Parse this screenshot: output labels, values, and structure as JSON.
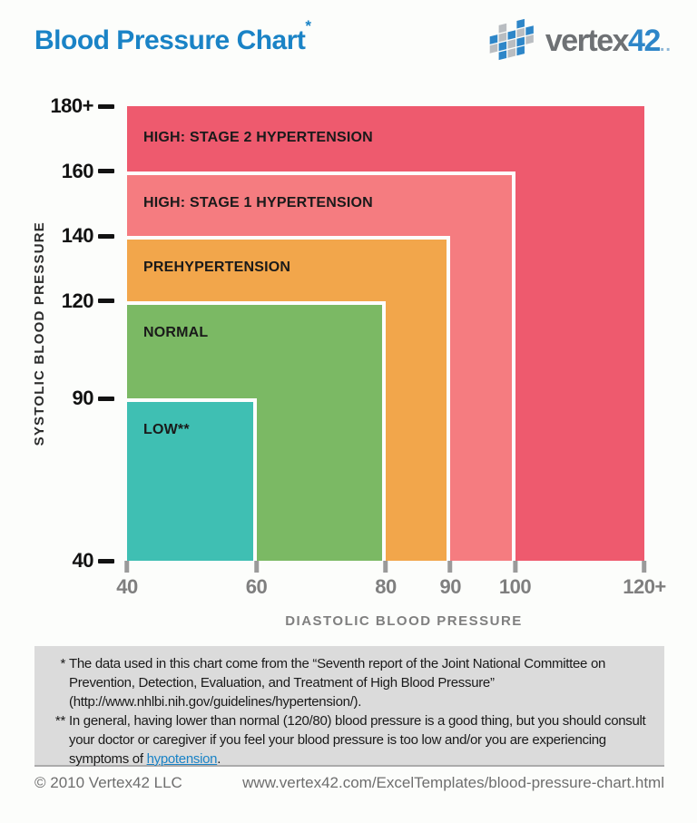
{
  "header": {
    "title": "Blood Pressure Chart",
    "asterisk": "*",
    "title_color": "#1A83C6"
  },
  "logo": {
    "name_gray": "vertex",
    "name_blue": "42",
    "dots": "..",
    "blue": "#2E86C8",
    "gray": "#B9BDC1"
  },
  "chart_data": {
    "type": "area",
    "title": "Blood Pressure Chart",
    "xlabel": "DIASTOLIC BLOOD PRESSURE",
    "ylabel": "SYSTOLIC BLOOD PRESSURE",
    "xlim": [
      40,
      120
    ],
    "ylim": [
      40,
      180
    ],
    "grid": false,
    "x_ticks": [
      {
        "label": "40",
        "value": 40
      },
      {
        "label": "60",
        "value": 60
      },
      {
        "label": "80",
        "value": 80
      },
      {
        "label": "90",
        "value": 90
      },
      {
        "label": "100",
        "value": 100
      },
      {
        "label": "120+",
        "value": 120
      }
    ],
    "y_ticks": [
      {
        "label": "40",
        "value": 40
      },
      {
        "label": "90",
        "value": 90
      },
      {
        "label": "120",
        "value": 120
      },
      {
        "label": "140",
        "value": 140
      },
      {
        "label": "160",
        "value": 160
      },
      {
        "label": "180+",
        "value": 180
      }
    ],
    "zones": [
      {
        "label": "HIGH: STAGE 2 HYPERTENSION",
        "diastolic_max": 120,
        "systolic_max": 180,
        "color": "#EE5A6E"
      },
      {
        "label": "HIGH: STAGE 1 HYPERTENSION",
        "diastolic_max": 100,
        "systolic_max": 160,
        "color": "#F57C80"
      },
      {
        "label": "PREHYPERTENSION",
        "diastolic_max": 90,
        "systolic_max": 140,
        "color": "#F2A64B"
      },
      {
        "label": "NORMAL",
        "diastolic_max": 80,
        "systolic_max": 120,
        "color": "#7BB964"
      },
      {
        "label": "LOW**",
        "diastolic_max": 60,
        "systolic_max": 90,
        "color": "#3FBFB3"
      }
    ],
    "zone_origin": {
      "diastolic": 40,
      "systolic": 40
    }
  },
  "footnotes": {
    "items": [
      {
        "marker": "*",
        "text": "The data used in this chart come from the “Seventh report of the Joint National Committee on Prevention, Detection, Evaluation, and Treatment of High Blood Pressure” (http://www.nhlbi.nih.gov/guidelines/hypertension/)."
      },
      {
        "marker": "**",
        "text": "In general, having lower than normal (120/80) blood pressure is a good thing, but you should consult your doctor or caregiver if you feel your blood pressure is too low and/or you are experiencing symptoms of ",
        "link": "hypotension",
        "suffix": "."
      }
    ]
  },
  "footer": {
    "copyright": "© 2010 Vertex42 LLC",
    "url": "www.vertex42.com/ExcelTemplates/blood-pressure-chart.html"
  }
}
